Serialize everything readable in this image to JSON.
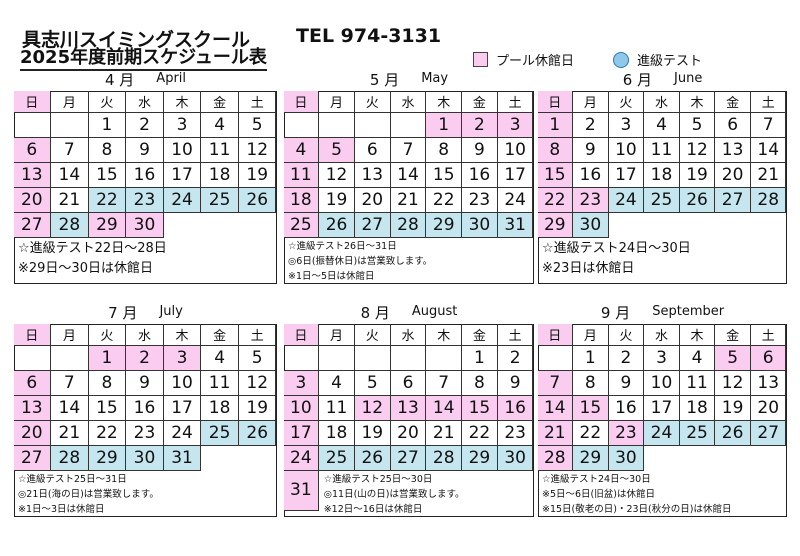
{
  "header": {
    "title": "具志川スイミングスクール",
    "tel": "TEL 974-3131",
    "subtitle": "2025年度前期スケジュール表"
  },
  "legend": {
    "closed_label": "プール休館日",
    "test_label": "進級テスト",
    "closed_color": "#f9ccf0",
    "test_color": "#c5e5ef"
  },
  "weekdays": [
    "日",
    "月",
    "火",
    "水",
    "木",
    "金",
    "土"
  ],
  "months": [
    {
      "jp": "4 月",
      "en": "April",
      "weeks": [
        [
          null,
          null,
          1,
          2,
          3,
          4,
          5
        ],
        [
          6,
          7,
          8,
          9,
          10,
          11,
          12
        ],
        [
          13,
          14,
          15,
          16,
          17,
          18,
          19
        ],
        [
          20,
          21,
          22,
          23,
          24,
          25,
          26
        ],
        [
          27,
          28,
          29,
          30
        ]
      ],
      "closed": [
        6,
        13,
        20,
        27,
        29,
        30
      ],
      "test": [
        22,
        23,
        24,
        25,
        26,
        28
      ],
      "notes": [
        "☆進級テスト22日～28日",
        "※29日～30日は休館日"
      ]
    },
    {
      "jp": "5 月",
      "en": "May",
      "weeks": [
        [
          null,
          null,
          null,
          null,
          1,
          2,
          3
        ],
        [
          4,
          5,
          6,
          7,
          8,
          9,
          10
        ],
        [
          11,
          12,
          13,
          14,
          15,
          16,
          17
        ],
        [
          18,
          19,
          20,
          21,
          22,
          23,
          24
        ],
        [
          25,
          26,
          27,
          28,
          29,
          30,
          31
        ]
      ],
      "closed": [
        1,
        2,
        3,
        4,
        5,
        11,
        18,
        25
      ],
      "test": [
        26,
        27,
        28,
        29,
        30,
        31
      ],
      "notes": [
        "☆進級テスト26日～31日",
        "◎6日(振替休日)は営業致します。",
        "※1日～5日は休館日"
      ]
    },
    {
      "jp": "6 月",
      "en": "June",
      "weeks": [
        [
          1,
          2,
          3,
          4,
          5,
          6,
          7
        ],
        [
          8,
          9,
          10,
          11,
          12,
          13,
          14
        ],
        [
          15,
          16,
          17,
          18,
          19,
          20,
          21
        ],
        [
          22,
          23,
          24,
          25,
          26,
          27,
          28
        ],
        [
          29,
          30
        ]
      ],
      "closed": [
        1,
        8,
        15,
        22,
        23,
        29
      ],
      "test": [
        24,
        25,
        26,
        27,
        28,
        30
      ],
      "notes": [
        "☆進級テスト24日～30日",
        "※23日は休館日"
      ]
    },
    {
      "jp": "7 月",
      "en": "July",
      "weeks": [
        [
          null,
          null,
          1,
          2,
          3,
          4,
          5
        ],
        [
          6,
          7,
          8,
          9,
          10,
          11,
          12
        ],
        [
          13,
          14,
          15,
          16,
          17,
          18,
          19
        ],
        [
          20,
          21,
          22,
          23,
          24,
          25,
          26
        ],
        [
          27,
          28,
          29,
          30,
          31
        ]
      ],
      "closed": [
        1,
        2,
        3,
        6,
        13,
        20,
        27
      ],
      "test": [
        25,
        26,
        28,
        29,
        30,
        31
      ],
      "notes": [
        "☆進級テスト25日～31日",
        "◎21日(海の日)は営業致します。",
        "※1日～3日は休館日"
      ]
    },
    {
      "jp": "8 月",
      "en": "August",
      "weeks": [
        [
          null,
          null,
          null,
          null,
          null,
          1,
          2
        ],
        [
          3,
          4,
          5,
          6,
          7,
          8,
          9
        ],
        [
          10,
          11,
          12,
          13,
          14,
          15,
          16
        ],
        [
          17,
          18,
          19,
          20,
          21,
          22,
          23
        ],
        [
          24,
          25,
          26,
          27,
          28,
          29,
          30
        ],
        [
          31
        ]
      ],
      "closed": [
        3,
        10,
        12,
        13,
        14,
        15,
        16,
        17,
        24,
        31
      ],
      "test": [
        25,
        26,
        27,
        28,
        29,
        30
      ],
      "notes": [
        "☆進級テスト25日～30日",
        "◎11日(山の日)は営業致します。",
        "※12日～16日は休館日"
      ]
    },
    {
      "jp": "9 月",
      "en": "September",
      "weeks": [
        [
          null,
          1,
          2,
          3,
          4,
          5,
          6
        ],
        [
          7,
          8,
          9,
          10,
          11,
          12,
          13
        ],
        [
          14,
          15,
          16,
          17,
          18,
          19,
          20
        ],
        [
          21,
          22,
          23,
          24,
          25,
          26,
          27
        ],
        [
          28,
          29,
          30
        ]
      ],
      "closed": [
        5,
        6,
        7,
        14,
        15,
        21,
        23,
        28
      ],
      "test": [
        24,
        25,
        26,
        27,
        29,
        30
      ],
      "notes": [
        "☆進級テスト24日～30日",
        "※5日～6日(旧盆)は休館日",
        "※15日(敬老の日)・23日(秋分の日)は休館日"
      ]
    }
  ]
}
